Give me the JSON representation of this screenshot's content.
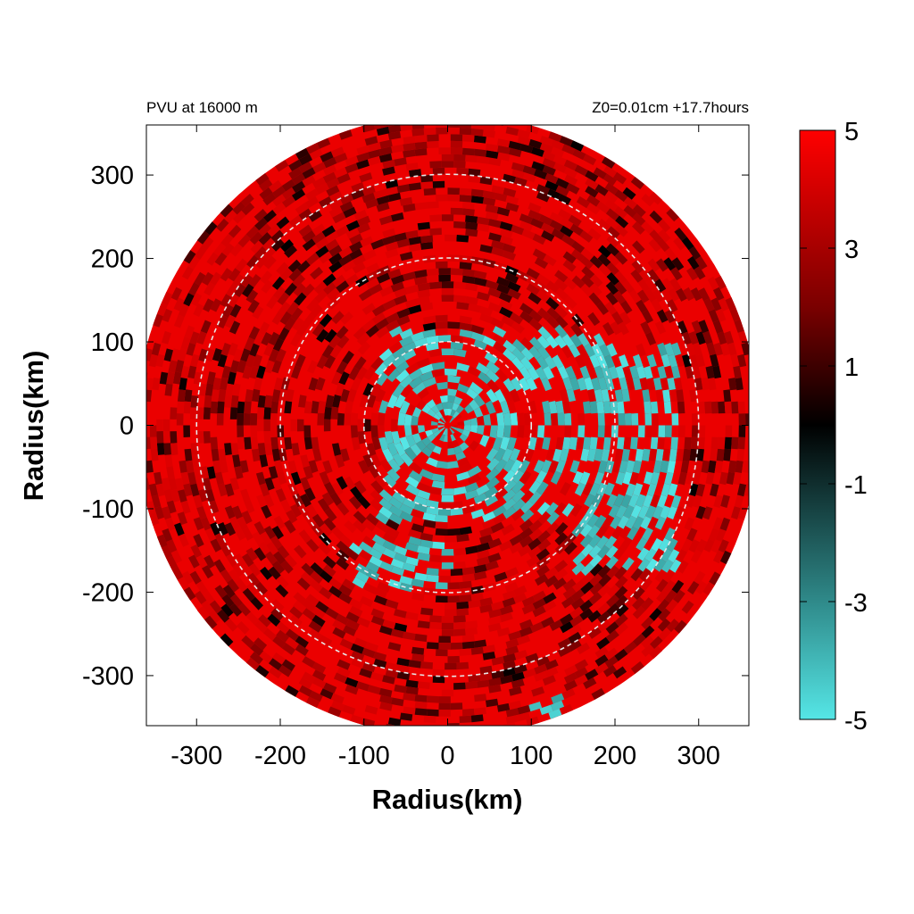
{
  "chart_data": {
    "type": "heatmap",
    "title_left": "PVU at 16000 m",
    "title_right": "Z0=0.01cm  +17.7hours",
    "xlabel": "Radius(km)",
    "ylabel": "Radius(km)",
    "xlim": [
      -360,
      360
    ],
    "ylim": [
      -360,
      360
    ],
    "x_ticks": [
      -300,
      -200,
      -100,
      0,
      100,
      200,
      300
    ],
    "y_ticks": [
      300,
      200,
      100,
      0,
      -100,
      -200,
      -300
    ],
    "domain_radius": 372,
    "reference_circles": [
      100,
      200,
      300
    ],
    "colorbar": {
      "range": [
        -5,
        5
      ],
      "ticks": [
        5,
        3,
        1,
        -1,
        -3,
        -5
      ],
      "colors": [
        {
          "value": -5,
          "color": "#55e6e6"
        },
        {
          "value": -3,
          "color": "#2f8a8a"
        },
        {
          "value": 0,
          "color": "#000000"
        },
        {
          "value": 2,
          "color": "#7a0000"
        },
        {
          "value": 5,
          "color": "#ff0000"
        }
      ]
    },
    "field_summary": {
      "dominant_value": 5,
      "negative_regions": [
        {
          "description": "inner core patchy",
          "x_range": [
            -80,
            170
          ],
          "y_range": [
            -110,
            110
          ],
          "value": -5
        },
        {
          "description": "southwest arc",
          "x_range": [
            -110,
            0
          ],
          "y_range": [
            -190,
            -130
          ],
          "value": -5
        },
        {
          "description": "east arc",
          "x_range": [
            150,
            270
          ],
          "y_range": [
            -170,
            100
          ],
          "value": -5
        },
        {
          "description": "south",
          "x_range": [
            100,
            160
          ],
          "y_range": [
            -350,
            -320
          ],
          "value": -5
        }
      ]
    }
  }
}
